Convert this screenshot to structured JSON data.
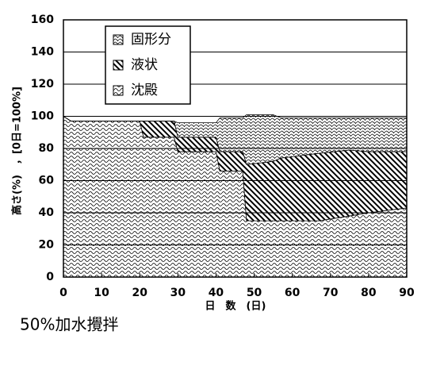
{
  "chart_data": {
    "type": "stacked-area",
    "x_label": "日　数　(日)",
    "y_label": "高さ(%)　，[0日=100%]",
    "caption": "50%加水攪拌",
    "x": [
      0,
      2,
      20,
      21,
      29,
      30,
      40,
      41,
      47,
      48,
      55,
      57,
      67,
      75,
      80,
      90
    ],
    "series": [
      {
        "name": "固形分",
        "color": "#000000",
        "pattern": "cross",
        "values": [
          0,
          0,
          0,
          0,
          0,
          9,
          9,
          21,
          21,
          31,
          29,
          25,
          22,
          20,
          21,
          21
        ]
      },
      {
        "name": "液状",
        "color": "#000000",
        "pattern": "diagonal",
        "values": [
          0,
          0,
          0,
          10,
          10,
          9,
          9,
          12,
          12,
          35,
          37,
          39,
          42,
          41,
          38,
          35
        ]
      },
      {
        "name": "沈殿",
        "color": "#000000",
        "pattern": "wave",
        "values": [
          100,
          97,
          97,
          87,
          87,
          78,
          78,
          66,
          66,
          35,
          35,
          35,
          35,
          38,
          40,
          43
        ]
      }
    ],
    "xlim": [
      0,
      90
    ],
    "xticks": [
      0,
      10,
      20,
      30,
      40,
      50,
      60,
      70,
      80,
      90
    ],
    "ylim": [
      0,
      160
    ],
    "yticks": [
      0,
      20,
      40,
      60,
      80,
      100,
      120,
      140,
      160
    ],
    "grid": true,
    "legend": "upper left"
  }
}
